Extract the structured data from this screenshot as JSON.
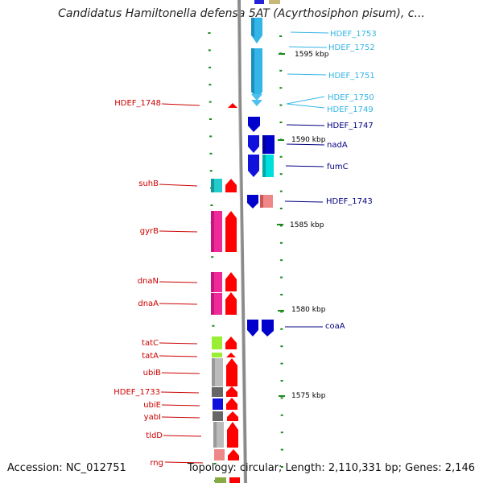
{
  "title": "Candidatus Hamiltonella defensa 5AT (Acyrthosiphon pisum), c...",
  "footer": {
    "accession": "Accession: NC_012751",
    "topology": "Topology: circular; Length: 2,110,331 bp; Genes: 2,146"
  },
  "colors": {
    "axis": "#8a8a8a",
    "tick": "#1a8a1a",
    "label_red": "#cc0000",
    "label_navy": "#000080",
    "label_cyan": "#33b5e5"
  },
  "scale_labels": [
    "1595 kbp",
    "1590 kbp",
    "1585 kbp",
    "1580 kbp",
    "1575 kbp"
  ],
  "left_genes": [
    {
      "name": "HDEF_1748",
      "color": "#ff0000"
    },
    {
      "name": "suhB",
      "color": "#ff0000"
    },
    {
      "name": "gyrB",
      "color": "#ff0000"
    },
    {
      "name": "dnaN",
      "color": "#ff0000"
    },
    {
      "name": "dnaA",
      "color": "#ff0000"
    },
    {
      "name": "tatC",
      "color": "#ff0000"
    },
    {
      "name": "tatA",
      "color": "#ff0000"
    },
    {
      "name": "ubiB",
      "color": "#ff0000"
    },
    {
      "name": "HDEF_1733",
      "color": "#ff0000"
    },
    {
      "name": "ubiE",
      "color": "#ff0000"
    },
    {
      "name": "yabI",
      "color": "#ff0000"
    },
    {
      "name": "tldD",
      "color": "#ff0000"
    },
    {
      "name": "rng",
      "color": "#ff0000"
    }
  ],
  "right_genes": [
    {
      "name": "HDEF_1753",
      "color": "#33b5e5"
    },
    {
      "name": "HDEF_1752",
      "color": "#33b5e5"
    },
    {
      "name": "HDEF_1751",
      "color": "#33b5e5"
    },
    {
      "name": "HDEF_1750",
      "color": "#33b5e5"
    },
    {
      "name": "HDEF_1749",
      "color": "#33b5e5"
    },
    {
      "name": "HDEF_1747",
      "color": "#0000cc"
    },
    {
      "name": "nadA",
      "color": "#0000cc"
    },
    {
      "name": "fumC",
      "color": "#0000cc"
    },
    {
      "name": "HDEF_1743",
      "color": "#0000cc"
    },
    {
      "name": "coaA",
      "color": "#0000cc"
    }
  ]
}
